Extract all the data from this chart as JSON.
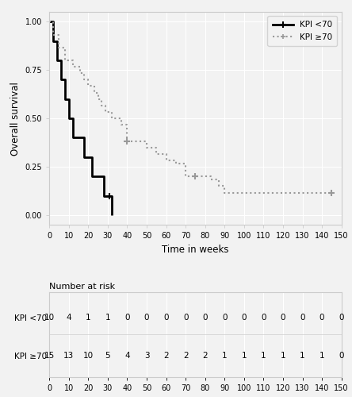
{
  "xlabel": "Time in weeks",
  "ylabel": "Overall survival",
  "xlim": [
    0,
    150
  ],
  "ylim": [
    -0.05,
    1.05
  ],
  "xticks": [
    0,
    10,
    20,
    30,
    40,
    50,
    60,
    70,
    80,
    90,
    100,
    110,
    120,
    130,
    140,
    150
  ],
  "yticks": [
    0.0,
    0.25,
    0.5,
    0.75,
    1.0
  ],
  "kpi_lt70": {
    "times": [
      0,
      2,
      3,
      4,
      5,
      6,
      7,
      8,
      10,
      12,
      15,
      18,
      20,
      22,
      25,
      28,
      30,
      32
    ],
    "survival": [
      1.0,
      0.9,
      0.9,
      0.8,
      0.8,
      0.7,
      0.7,
      0.6,
      0.5,
      0.4,
      0.4,
      0.3,
      0.3,
      0.2,
      0.2,
      0.1,
      0.1,
      0.0
    ],
    "color": "#000000",
    "linestyle": "solid",
    "linewidth": 2.0,
    "label": "KPI <70",
    "censor_times": [
      31
    ],
    "censor_surv": [
      0.1
    ]
  },
  "kpi_ge70": {
    "times": [
      0,
      2,
      4,
      5,
      7,
      8,
      10,
      12,
      14,
      16,
      18,
      20,
      23,
      25,
      27,
      29,
      32,
      37,
      40,
      45,
      50,
      55,
      60,
      65,
      70,
      75,
      80,
      83,
      87,
      90,
      95,
      100,
      105,
      110,
      115,
      120,
      125,
      130,
      135,
      140,
      145
    ],
    "survival": [
      1.0,
      0.933,
      0.933,
      0.867,
      0.867,
      0.8,
      0.8,
      0.767,
      0.767,
      0.733,
      0.7,
      0.667,
      0.633,
      0.6,
      0.567,
      0.533,
      0.5,
      0.467,
      0.383,
      0.383,
      0.35,
      0.317,
      0.283,
      0.267,
      0.2,
      0.2,
      0.2,
      0.183,
      0.15,
      0.117,
      0.117,
      0.117,
      0.117,
      0.117,
      0.117,
      0.117,
      0.117,
      0.117,
      0.117,
      0.117,
      0.117
    ],
    "color": "#999999",
    "linestyle": "dotted",
    "linewidth": 1.5,
    "label": "KPI ≥70",
    "censor_times": [
      40,
      75,
      145
    ],
    "censor_surv": [
      0.383,
      0.2,
      0.117
    ]
  },
  "risk_table": {
    "times": [
      0,
      10,
      20,
      30,
      40,
      50,
      60,
      70,
      80,
      90,
      100,
      110,
      120,
      130,
      140,
      150
    ],
    "kpi_lt70": [
      10,
      4,
      1,
      1,
      0,
      0,
      0,
      0,
      0,
      0,
      0,
      0,
      0,
      0,
      0,
      0
    ],
    "kpi_ge70": [
      15,
      13,
      10,
      5,
      4,
      3,
      2,
      2,
      2,
      1,
      1,
      1,
      1,
      1,
      1,
      0
    ]
  },
  "bg_color": "#f2f2f2",
  "grid_color": "#ffffff",
  "spine_color": "#cccccc"
}
